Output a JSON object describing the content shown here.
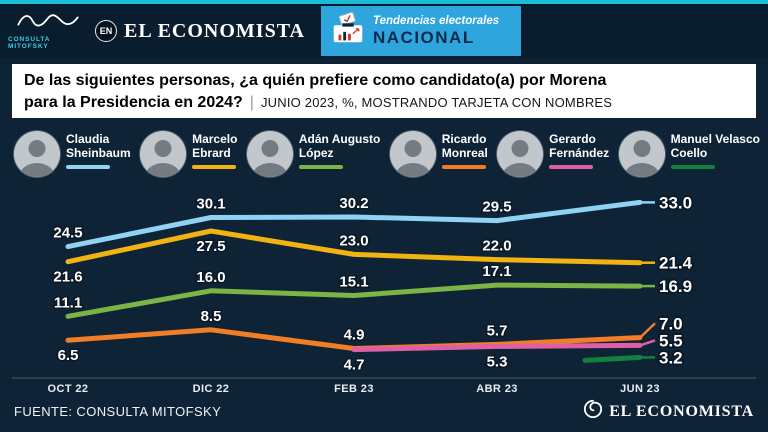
{
  "colors": {
    "background": "#0e2436",
    "topbar": "#0a1d2f",
    "teal_strip": "#1bbcd6",
    "banner_blue": "#2ea5dc",
    "title_box": "#ffffff"
  },
  "header": {
    "mitofsky_caption": "CONSULTA MITOFSKY",
    "en_badge": "EN",
    "brand": "EL ECONOMISTA",
    "banner_line1": "Tendencias electorales",
    "banner_line2": "NACIONAL"
  },
  "title": {
    "line1": "De las siguientes personas, ¿a quién prefiere como candidato(a) por Morena",
    "line2_bold": "para la Presidencia en 2024?",
    "separator": "|",
    "line2_rest": "JUNIO 2023, %, MOSTRANDO TARJETA CON NOMBRES"
  },
  "chart_data": {
    "type": "line",
    "categories": [
      "OCT 22",
      "DIC 22",
      "FEB 23",
      "ABR 23",
      "JUN 23"
    ],
    "ylim": [
      0,
      36
    ],
    "grid": false,
    "legend_position": "top",
    "series": [
      {
        "name": "Claudia Sheinbaum",
        "name_lines": [
          "Claudia",
          "Sheinbaum"
        ],
        "color": "#8fd2f2",
        "values": [
          24.5,
          30.1,
          30.2,
          29.5,
          33.0
        ],
        "label_side": [
          "above",
          "above",
          "above",
          "above"
        ]
      },
      {
        "name": "Marcelo Ebrard",
        "name_lines": [
          "Marcelo",
          "Ebrard"
        ],
        "color": "#f0b312",
        "values": [
          21.6,
          27.5,
          23.0,
          22.0,
          21.4
        ],
        "label_side": [
          "below",
          "below",
          "above",
          "above"
        ]
      },
      {
        "name": "Adán Augusto López",
        "name_lines": [
          "Adán Augusto",
          "López"
        ],
        "color": "#7cb445",
        "values": [
          11.1,
          16.0,
          15.1,
          17.1,
          16.9
        ],
        "label_side": [
          "above",
          "above",
          "above",
          "above"
        ]
      },
      {
        "name": "Ricardo Monreal",
        "name_lines": [
          "Ricardo",
          "Monreal"
        ],
        "color": "#ef7e27",
        "values": [
          6.5,
          8.5,
          4.9,
          5.7,
          7.0
        ],
        "label_side": [
          "below",
          "above",
          "above",
          "above"
        ]
      },
      {
        "name": "Gerardo Fernández",
        "name_lines": [
          "Gerardo",
          "Fernández"
        ],
        "color": "#de5fa3",
        "values": [
          null,
          null,
          4.7,
          5.3,
          5.5
        ],
        "label_side": [
          null,
          null,
          "below",
          "below"
        ]
      },
      {
        "name": "Manuel Velasco Coello",
        "name_lines": [
          "Manuel Velasco",
          "Coello"
        ],
        "color": "#14803c",
        "values": [
          null,
          null,
          null,
          null,
          3.2
        ],
        "label_side": [
          null,
          null,
          null,
          null
        ]
      }
    ]
  },
  "footer": {
    "source": "FUENTE: CONSULTA MITOFSKY",
    "brand": "EL ECONOMISTA"
  }
}
